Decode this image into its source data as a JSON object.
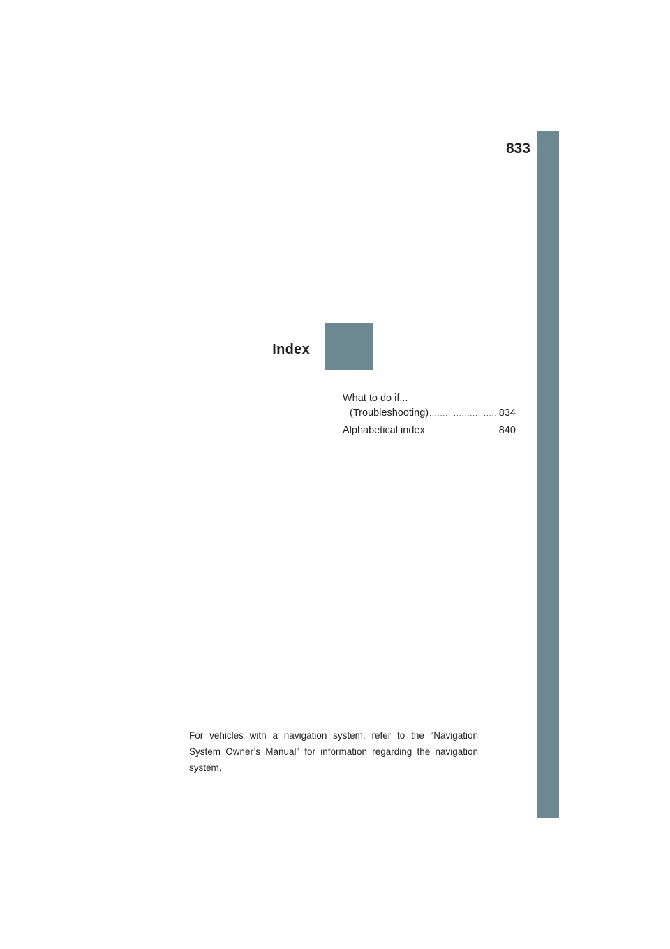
{
  "page": {
    "number": "833",
    "section_title": "Index"
  },
  "toc": {
    "intro": "What to do if...",
    "items": [
      {
        "label": "(Troubleshooting)",
        "page": "834"
      },
      {
        "label": "Alphabetical index",
        "page": "840"
      }
    ]
  },
  "note": "For vehicles with a navigation system, refer to the “Navigation System Owner’s Manual” for information regarding the navigation system.",
  "colors": {
    "accent": "#6b8893",
    "rule": "#b9c5cb",
    "text": "#231f20"
  }
}
